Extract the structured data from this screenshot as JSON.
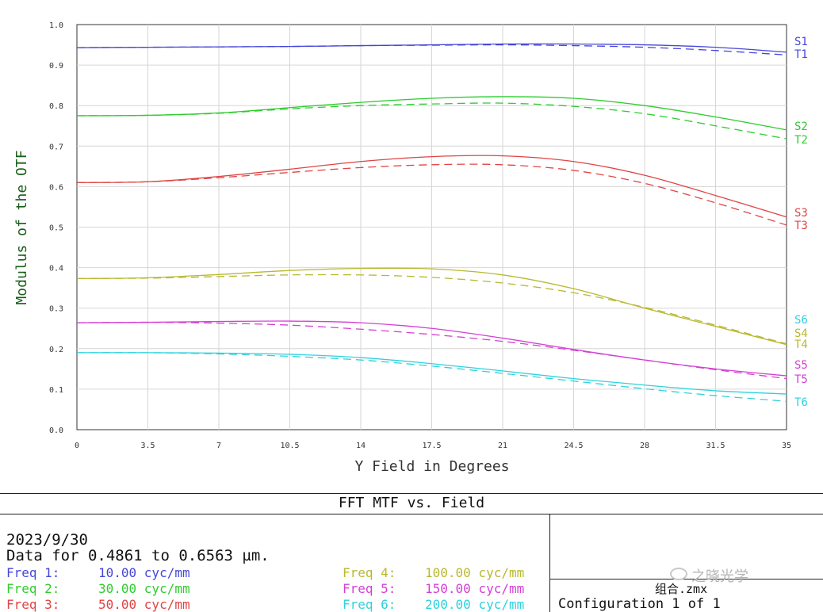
{
  "chart_data": {
    "type": "line",
    "title": "FFT MTF vs. Field",
    "xlabel": "Y Field in Degrees",
    "ylabel": "Modulus of the OTF",
    "xlim": [
      0,
      35
    ],
    "ylim": [
      0,
      1.0
    ],
    "x_ticks": [
      "0",
      "3.5",
      "7",
      "10.5",
      "14",
      "17.5",
      "21",
      "24.5",
      "28",
      "31.5",
      "35"
    ],
    "y_ticks": [
      "0.0",
      "0.1",
      "0.2",
      "0.3",
      "0.4",
      "0.5",
      "0.6",
      "0.7",
      "0.8",
      "0.9",
      "1.0"
    ],
    "grid": true,
    "x": [
      0,
      3.5,
      7,
      10.5,
      14,
      17.5,
      21,
      24.5,
      28,
      31.5,
      35
    ],
    "series": [
      {
        "name": "S1",
        "color": "#4646d8",
        "dash": false,
        "values": [
          0.943,
          0.944,
          0.945,
          0.946,
          0.948,
          0.95,
          0.952,
          0.952,
          0.95,
          0.944,
          0.932
        ]
      },
      {
        "name": "T1",
        "color": "#4646d8",
        "dash": true,
        "values": [
          0.943,
          0.944,
          0.945,
          0.946,
          0.948,
          0.949,
          0.95,
          0.948,
          0.944,
          0.936,
          0.925
        ]
      },
      {
        "name": "S2",
        "color": "#2ecc2e",
        "dash": false,
        "values": [
          0.775,
          0.776,
          0.782,
          0.795,
          0.808,
          0.818,
          0.822,
          0.818,
          0.8,
          0.772,
          0.74
        ]
      },
      {
        "name": "T2",
        "color": "#2ecc2e",
        "dash": true,
        "values": [
          0.775,
          0.776,
          0.781,
          0.792,
          0.8,
          0.804,
          0.806,
          0.798,
          0.78,
          0.75,
          0.718
        ]
      },
      {
        "name": "S3",
        "color": "#e04444",
        "dash": false,
        "values": [
          0.61,
          0.612,
          0.625,
          0.643,
          0.662,
          0.674,
          0.676,
          0.662,
          0.628,
          0.578,
          0.525
        ]
      },
      {
        "name": "T3",
        "color": "#e04444",
        "dash": true,
        "values": [
          0.61,
          0.612,
          0.622,
          0.635,
          0.647,
          0.654,
          0.654,
          0.64,
          0.608,
          0.56,
          0.505
        ]
      },
      {
        "name": "S4",
        "color": "#b8b830",
        "dash": false,
        "values": [
          0.373,
          0.375,
          0.383,
          0.393,
          0.398,
          0.397,
          0.382,
          0.348,
          0.3,
          0.255,
          0.21
        ]
      },
      {
        "name": "T4",
        "color": "#b8b830",
        "dash": true,
        "values": [
          0.373,
          0.374,
          0.378,
          0.382,
          0.382,
          0.376,
          0.362,
          0.338,
          0.302,
          0.258,
          0.212
        ]
      },
      {
        "name": "S5",
        "color": "#d43fd4",
        "dash": false,
        "values": [
          0.264,
          0.265,
          0.267,
          0.268,
          0.264,
          0.25,
          0.226,
          0.198,
          0.172,
          0.15,
          0.133
        ]
      },
      {
        "name": "T5",
        "color": "#d43fd4",
        "dash": true,
        "values": [
          0.264,
          0.265,
          0.263,
          0.258,
          0.248,
          0.235,
          0.218,
          0.196,
          0.172,
          0.148,
          0.126
        ]
      },
      {
        "name": "S6",
        "color": "#2ed2dc",
        "dash": false,
        "values": [
          0.19,
          0.19,
          0.189,
          0.186,
          0.178,
          0.163,
          0.145,
          0.126,
          0.11,
          0.096,
          0.088
        ]
      },
      {
        "name": "T6",
        "color": "#2ed2dc",
        "dash": true,
        "values": [
          0.19,
          0.19,
          0.187,
          0.181,
          0.172,
          0.157,
          0.139,
          0.12,
          0.101,
          0.084,
          0.07
        ]
      }
    ],
    "legend_stack": [
      {
        "name": "S1",
        "color": "#4646d8"
      },
      {
        "name": "T1",
        "color": "#4646d8"
      },
      {
        "name": "S2",
        "color": "#2ecc2e"
      },
      {
        "name": "T2",
        "color": "#2ecc2e"
      },
      {
        "name": "S3",
        "color": "#e04444"
      },
      {
        "name": "T3",
        "color": "#e04444"
      },
      {
        "name": "S6",
        "color": "#2ed2dc"
      },
      {
        "name": "S4",
        "color": "#b8b830"
      },
      {
        "name": "T4",
        "color": "#b8b830"
      },
      {
        "name": "S5",
        "color": "#d43fd4"
      },
      {
        "name": "T5",
        "color": "#d43fd4"
      },
      {
        "name": "T6",
        "color": "#2ed2dc"
      }
    ]
  },
  "panel": {
    "title": "FFT MTF vs. Field",
    "date": "2023/9/30",
    "data_range": "Data for 0.4861 to 0.6563 µm.",
    "freqs": [
      {
        "label": "Freq 1:",
        "value": "10.00 cyc/mm",
        "color": "#4646d8"
      },
      {
        "label": "Freq 2:",
        "value": "30.00 cyc/mm",
        "color": "#2ecc2e"
      },
      {
        "label": "Freq 3:",
        "value": "50.00 cyc/mm",
        "color": "#e04444"
      },
      {
        "label": "Freq 4:",
        "value": "100.00 cyc/mm",
        "color": "#b8b830"
      },
      {
        "label": "Freq 5:",
        "value": "150.00 cyc/mm",
        "color": "#d43fd4"
      },
      {
        "label": "Freq 6:",
        "value": "200.00 cyc/mm",
        "color": "#2ed2dc"
      }
    ],
    "file_name": "组合.zmx",
    "configuration": "Configuration 1 of 1",
    "watermark": "之晓光学"
  }
}
